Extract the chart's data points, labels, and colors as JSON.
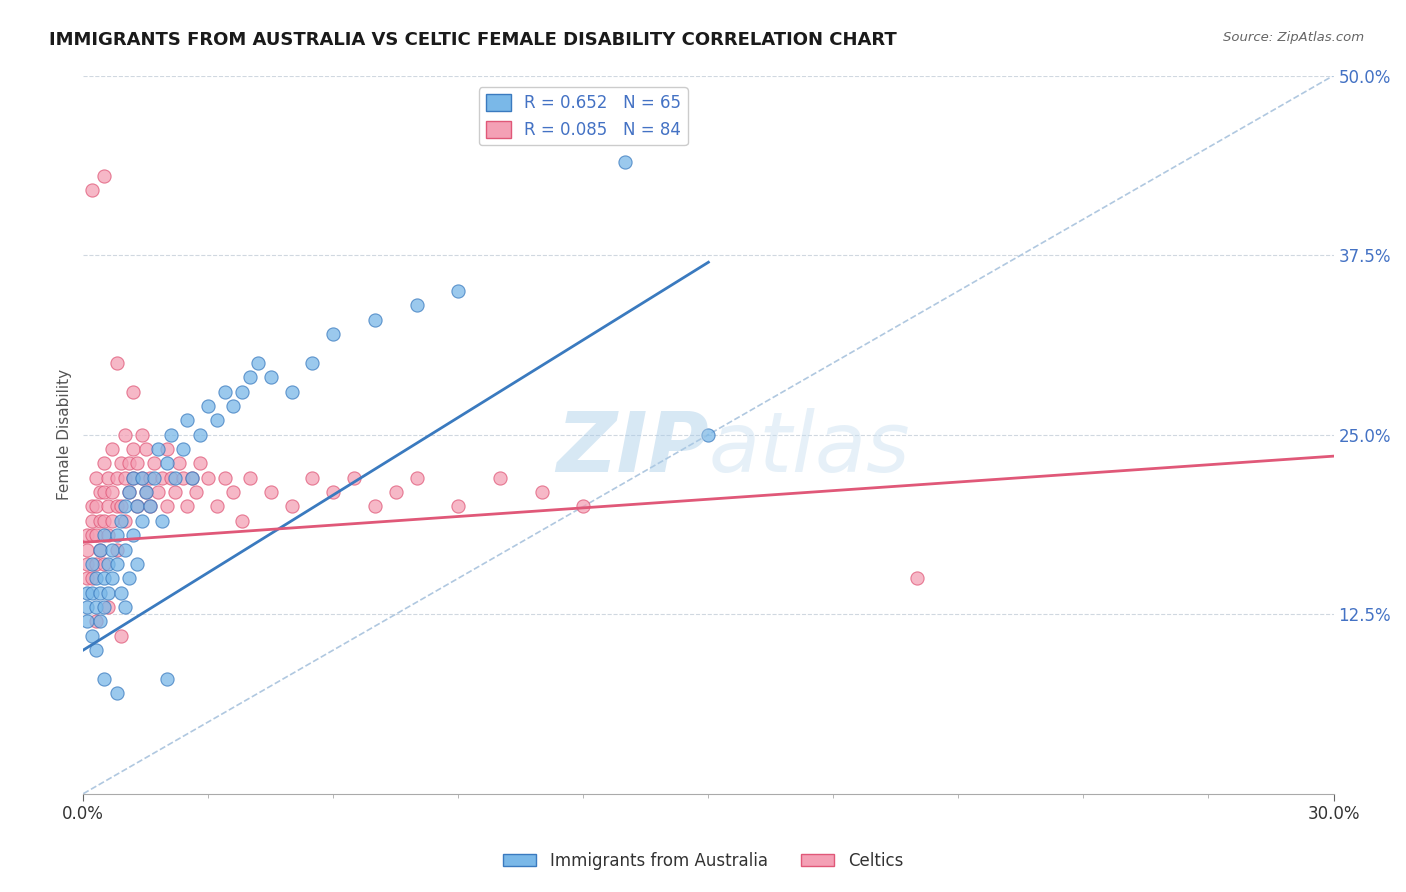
{
  "title": "IMMIGRANTS FROM AUSTRALIA VS CELTIC FEMALE DISABILITY CORRELATION CHART",
  "source_text": "Source: ZipAtlas.com",
  "ylabel": "Female Disability",
  "xlim": [
    0.0,
    0.3
  ],
  "ylim": [
    0.0,
    0.5
  ],
  "blue_R": 0.652,
  "blue_N": 65,
  "pink_R": 0.085,
  "pink_N": 84,
  "blue_color": "#7ab8e8",
  "pink_color": "#f4a0b5",
  "blue_line_color": "#3a7abf",
  "pink_line_color": "#e05878",
  "diag_color": "#b0c8e0",
  "grid_color": "#d0d8e0",
  "legend_blue_label": "Immigrants from Australia",
  "legend_pink_label": "Celtics",
  "watermark": "ZIPatlas",
  "blue_trend": [
    0.0,
    0.1,
    0.15,
    0.37
  ],
  "pink_trend": [
    0.0,
    0.175,
    0.3,
    0.235
  ],
  "blue_scatter_x": [
    0.001,
    0.001,
    0.001,
    0.002,
    0.002,
    0.002,
    0.003,
    0.003,
    0.003,
    0.004,
    0.004,
    0.004,
    0.005,
    0.005,
    0.005,
    0.006,
    0.006,
    0.007,
    0.007,
    0.008,
    0.008,
    0.009,
    0.009,
    0.01,
    0.01,
    0.01,
    0.011,
    0.011,
    0.012,
    0.012,
    0.013,
    0.013,
    0.014,
    0.014,
    0.015,
    0.016,
    0.017,
    0.018,
    0.019,
    0.02,
    0.021,
    0.022,
    0.024,
    0.025,
    0.026,
    0.028,
    0.03,
    0.032,
    0.034,
    0.036,
    0.038,
    0.04,
    0.042,
    0.045,
    0.05,
    0.055,
    0.06,
    0.07,
    0.08,
    0.09,
    0.13,
    0.15,
    0.02,
    0.005,
    0.008
  ],
  "blue_scatter_y": [
    0.14,
    0.13,
    0.12,
    0.16,
    0.14,
    0.11,
    0.15,
    0.13,
    0.1,
    0.17,
    0.14,
    0.12,
    0.18,
    0.15,
    0.13,
    0.16,
    0.14,
    0.17,
    0.15,
    0.18,
    0.16,
    0.19,
    0.14,
    0.2,
    0.17,
    0.13,
    0.21,
    0.15,
    0.22,
    0.18,
    0.2,
    0.16,
    0.22,
    0.19,
    0.21,
    0.2,
    0.22,
    0.24,
    0.19,
    0.23,
    0.25,
    0.22,
    0.24,
    0.26,
    0.22,
    0.25,
    0.27,
    0.26,
    0.28,
    0.27,
    0.28,
    0.29,
    0.3,
    0.29,
    0.28,
    0.3,
    0.32,
    0.33,
    0.34,
    0.35,
    0.44,
    0.25,
    0.08,
    0.08,
    0.07
  ],
  "pink_scatter_x": [
    0.001,
    0.001,
    0.001,
    0.001,
    0.002,
    0.002,
    0.002,
    0.002,
    0.003,
    0.003,
    0.003,
    0.003,
    0.004,
    0.004,
    0.004,
    0.005,
    0.005,
    0.005,
    0.005,
    0.006,
    0.006,
    0.006,
    0.007,
    0.007,
    0.007,
    0.008,
    0.008,
    0.008,
    0.009,
    0.009,
    0.01,
    0.01,
    0.01,
    0.011,
    0.011,
    0.012,
    0.012,
    0.013,
    0.013,
    0.014,
    0.014,
    0.015,
    0.015,
    0.016,
    0.016,
    0.017,
    0.018,
    0.019,
    0.02,
    0.02,
    0.021,
    0.022,
    0.023,
    0.024,
    0.025,
    0.026,
    0.027,
    0.028,
    0.03,
    0.032,
    0.034,
    0.036,
    0.038,
    0.04,
    0.045,
    0.05,
    0.055,
    0.06,
    0.065,
    0.07,
    0.075,
    0.08,
    0.09,
    0.1,
    0.11,
    0.12,
    0.002,
    0.005,
    0.008,
    0.012,
    0.003,
    0.006,
    0.009,
    0.2
  ],
  "pink_scatter_y": [
    0.18,
    0.17,
    0.16,
    0.15,
    0.2,
    0.19,
    0.18,
    0.15,
    0.22,
    0.2,
    0.18,
    0.16,
    0.21,
    0.19,
    0.17,
    0.23,
    0.21,
    0.19,
    0.16,
    0.22,
    0.2,
    0.18,
    0.24,
    0.21,
    0.19,
    0.22,
    0.2,
    0.17,
    0.23,
    0.2,
    0.25,
    0.22,
    0.19,
    0.23,
    0.21,
    0.24,
    0.22,
    0.23,
    0.2,
    0.25,
    0.22,
    0.24,
    0.21,
    0.22,
    0.2,
    0.23,
    0.21,
    0.22,
    0.24,
    0.2,
    0.22,
    0.21,
    0.23,
    0.22,
    0.2,
    0.22,
    0.21,
    0.23,
    0.22,
    0.2,
    0.22,
    0.21,
    0.19,
    0.22,
    0.21,
    0.2,
    0.22,
    0.21,
    0.22,
    0.2,
    0.21,
    0.22,
    0.2,
    0.22,
    0.21,
    0.2,
    0.42,
    0.43,
    0.3,
    0.28,
    0.12,
    0.13,
    0.11,
    0.15
  ]
}
